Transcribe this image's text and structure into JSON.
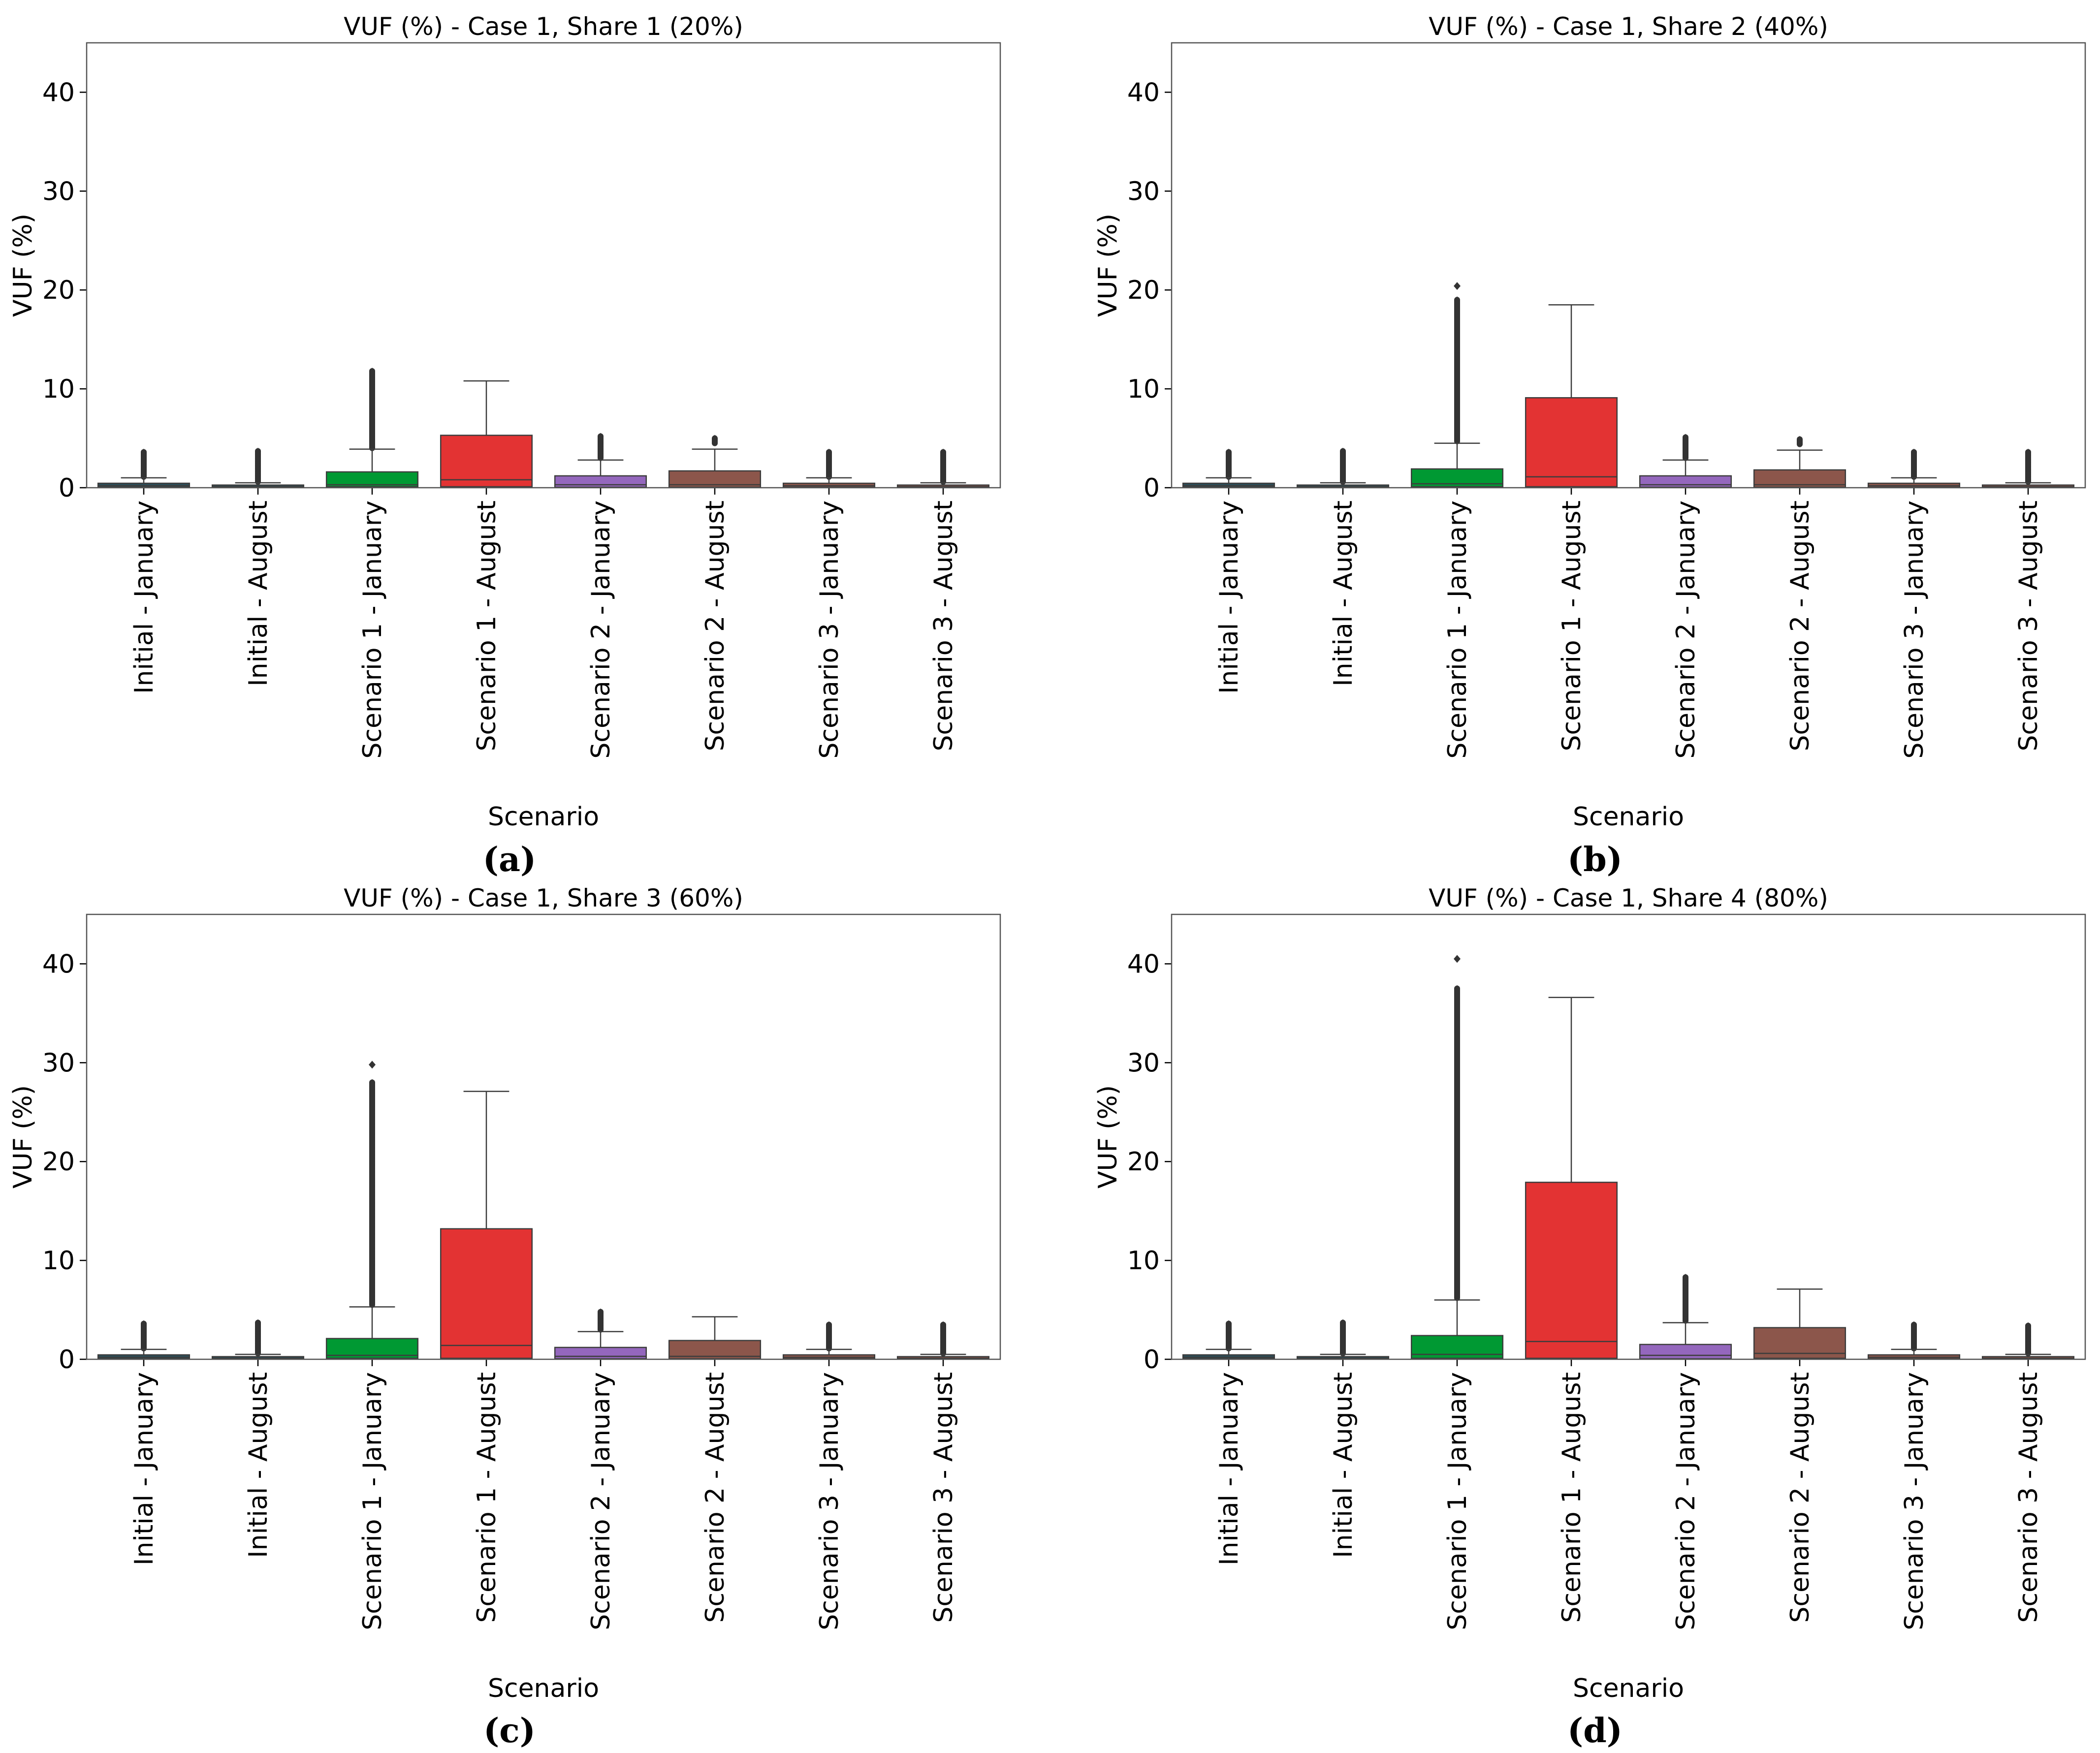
{
  "colors": {
    "initial": "#2b4f5a",
    "scenario1_january": "#009933",
    "scenario1_august": "#e33333",
    "scenario2_january": "#9467bd",
    "scenario2_august": "#8c564b",
    "scenario3": "#8c564b",
    "outline": "#3c3c3c"
  },
  "chart_data": [
    {
      "type": "box",
      "panel": "(a)",
      "title": "VUF (%) - Case 1, Share 1 (20%)",
      "xlabel": "Scenario",
      "ylabel": "VUF (%)",
      "ylim": [
        0,
        45
      ],
      "yticks": [
        0,
        10,
        20,
        30,
        40
      ],
      "categories": [
        "Initial - January",
        "Initial - August",
        "Scenario 1 - January",
        "Scenario 1 - August",
        "Scenario 2 - January",
        "Scenario 2 - August",
        "Scenario 3 - January",
        "Scenario 3 - August"
      ],
      "colors": [
        "#2b4f5a",
        "#2b4f5a",
        "#009933",
        "#e33333",
        "#9467bd",
        "#8c564b",
        "#8c564b",
        "#8c564b"
      ],
      "boxes": [
        {
          "q1": 0.05,
          "median": 0.2,
          "q3": 0.45,
          "whisker_low": 0,
          "whisker_high": 1.0,
          "outliers_min": 1.1,
          "outliers_max": 3.6
        },
        {
          "q1": 0.02,
          "median": 0.1,
          "q3": 0.25,
          "whisker_low": 0,
          "whisker_high": 0.5,
          "outliers_min": 0.6,
          "outliers_max": 3.7
        },
        {
          "q1": 0.1,
          "median": 0.3,
          "q3": 1.6,
          "whisker_low": 0,
          "whisker_high": 3.9,
          "outliers_min": 4.0,
          "outliers_max": 11.8
        },
        {
          "q1": 0.1,
          "median": 0.8,
          "q3": 5.3,
          "whisker_low": 0,
          "whisker_high": 10.8,
          "outliers_min": null,
          "outliers_max": null
        },
        {
          "q1": 0.05,
          "median": 0.3,
          "q3": 1.2,
          "whisker_low": 0,
          "whisker_high": 2.8,
          "outliers_min": 3.0,
          "outliers_max": 5.2
        },
        {
          "q1": 0.05,
          "median": 0.3,
          "q3": 1.7,
          "whisker_low": 0,
          "whisker_high": 3.9,
          "outliers_min": 4.5,
          "outliers_max": 5.0
        },
        {
          "q1": 0.05,
          "median": 0.2,
          "q3": 0.45,
          "whisker_low": 0,
          "whisker_high": 1.0,
          "outliers_min": 1.1,
          "outliers_max": 3.6
        },
        {
          "q1": 0.02,
          "median": 0.1,
          "q3": 0.25,
          "whisker_low": 0,
          "whisker_high": 0.5,
          "outliers_min": 0.6,
          "outliers_max": 3.6
        }
      ]
    },
    {
      "type": "box",
      "panel": "(b)",
      "title": "VUF (%) - Case 1, Share 2 (40%)",
      "xlabel": "Scenario",
      "ylabel": "VUF (%)",
      "ylim": [
        0,
        45
      ],
      "yticks": [
        0,
        10,
        20,
        30,
        40
      ],
      "categories": [
        "Initial - January",
        "Initial - August",
        "Scenario 1 - January",
        "Scenario 1 - August",
        "Scenario 2 - January",
        "Scenario 2 - August",
        "Scenario 3 - January",
        "Scenario 3 - August"
      ],
      "colors": [
        "#2b4f5a",
        "#2b4f5a",
        "#009933",
        "#e33333",
        "#9467bd",
        "#8c564b",
        "#8c564b",
        "#8c564b"
      ],
      "boxes": [
        {
          "q1": 0.05,
          "median": 0.2,
          "q3": 0.45,
          "whisker_low": 0,
          "whisker_high": 1.0,
          "outliers_min": 1.1,
          "outliers_max": 3.6
        },
        {
          "q1": 0.02,
          "median": 0.1,
          "q3": 0.25,
          "whisker_low": 0,
          "whisker_high": 0.5,
          "outliers_min": 0.6,
          "outliers_max": 3.7
        },
        {
          "q1": 0.1,
          "median": 0.4,
          "q3": 1.9,
          "whisker_low": 0,
          "whisker_high": 4.5,
          "outliers_min": 4.7,
          "outliers_max": 19.0,
          "outliers_extra": [
            20.4
          ]
        },
        {
          "q1": 0.1,
          "median": 1.1,
          "q3": 9.1,
          "whisker_low": 0,
          "whisker_high": 18.5,
          "outliers_min": null,
          "outliers_max": null
        },
        {
          "q1": 0.05,
          "median": 0.3,
          "q3": 1.2,
          "whisker_low": 0,
          "whisker_high": 2.8,
          "outliers_min": 3.0,
          "outliers_max": 5.1
        },
        {
          "q1": 0.05,
          "median": 0.3,
          "q3": 1.8,
          "whisker_low": 0,
          "whisker_high": 3.8,
          "outliers_min": 4.4,
          "outliers_max": 4.9
        },
        {
          "q1": 0.05,
          "median": 0.2,
          "q3": 0.45,
          "whisker_low": 0,
          "whisker_high": 1.0,
          "outliers_min": 1.1,
          "outliers_max": 3.6
        },
        {
          "q1": 0.02,
          "median": 0.1,
          "q3": 0.25,
          "whisker_low": 0,
          "whisker_high": 0.5,
          "outliers_min": 0.6,
          "outliers_max": 3.6
        }
      ]
    },
    {
      "type": "box",
      "panel": "(c)",
      "title": "VUF (%) - Case 1, Share 3 (60%)",
      "xlabel": "Scenario",
      "ylabel": "VUF (%)",
      "ylim": [
        0,
        45
      ],
      "yticks": [
        0,
        10,
        20,
        30,
        40
      ],
      "categories": [
        "Initial - January",
        "Initial - August",
        "Scenario 1 - January",
        "Scenario 1 - August",
        "Scenario 2 - January",
        "Scenario 2 - August",
        "Scenario 3 - January",
        "Scenario 3 - August"
      ],
      "colors": [
        "#2b4f5a",
        "#2b4f5a",
        "#009933",
        "#e33333",
        "#9467bd",
        "#8c564b",
        "#8c564b",
        "#8c564b"
      ],
      "boxes": [
        {
          "q1": 0.05,
          "median": 0.2,
          "q3": 0.45,
          "whisker_low": 0,
          "whisker_high": 1.0,
          "outliers_min": 1.1,
          "outliers_max": 3.6
        },
        {
          "q1": 0.02,
          "median": 0.1,
          "q3": 0.25,
          "whisker_low": 0,
          "whisker_high": 0.5,
          "outliers_min": 0.6,
          "outliers_max": 3.7
        },
        {
          "q1": 0.1,
          "median": 0.4,
          "q3": 2.1,
          "whisker_low": 0,
          "whisker_high": 5.3,
          "outliers_min": 5.5,
          "outliers_max": 28.0,
          "outliers_extra": [
            29.8
          ]
        },
        {
          "q1": 0.1,
          "median": 1.4,
          "q3": 13.2,
          "whisker_low": 0,
          "whisker_high": 27.1,
          "outliers_min": null,
          "outliers_max": null
        },
        {
          "q1": 0.05,
          "median": 0.3,
          "q3": 1.2,
          "whisker_low": 0,
          "whisker_high": 2.8,
          "outliers_min": 3.0,
          "outliers_max": 4.8
        },
        {
          "q1": 0.05,
          "median": 0.3,
          "q3": 1.9,
          "whisker_low": 0,
          "whisker_high": 4.3,
          "outliers_min": null,
          "outliers_max": null
        },
        {
          "q1": 0.05,
          "median": 0.2,
          "q3": 0.45,
          "whisker_low": 0,
          "whisker_high": 1.0,
          "outliers_min": 1.1,
          "outliers_max": 3.5
        },
        {
          "q1": 0.02,
          "median": 0.1,
          "q3": 0.25,
          "whisker_low": 0,
          "whisker_high": 0.5,
          "outliers_min": 0.6,
          "outliers_max": 3.5
        }
      ]
    },
    {
      "type": "box",
      "panel": "(d)",
      "title": "VUF (%) - Case 1, Share 4 (80%)",
      "xlabel": "Scenario",
      "ylabel": "VUF (%)",
      "ylim": [
        0,
        45
      ],
      "yticks": [
        0,
        10,
        20,
        30,
        40
      ],
      "categories": [
        "Initial - January",
        "Initial - August",
        "Scenario 1 - January",
        "Scenario 1 - August",
        "Scenario 2 - January",
        "Scenario 2 - August",
        "Scenario 3 - January",
        "Scenario 3 - August"
      ],
      "colors": [
        "#2b4f5a",
        "#2b4f5a",
        "#009933",
        "#e33333",
        "#9467bd",
        "#8c564b",
        "#8c564b",
        "#8c564b"
      ],
      "boxes": [
        {
          "q1": 0.05,
          "median": 0.2,
          "q3": 0.45,
          "whisker_low": 0,
          "whisker_high": 1.0,
          "outliers_min": 1.1,
          "outliers_max": 3.6
        },
        {
          "q1": 0.02,
          "median": 0.1,
          "q3": 0.25,
          "whisker_low": 0,
          "whisker_high": 0.5,
          "outliers_min": 0.6,
          "outliers_max": 3.7
        },
        {
          "q1": 0.1,
          "median": 0.5,
          "q3": 2.4,
          "whisker_low": 0,
          "whisker_high": 6.0,
          "outliers_min": 6.2,
          "outliers_max": 37.5,
          "outliers_extra": [
            40.5
          ]
        },
        {
          "q1": 0.1,
          "median": 1.8,
          "q3": 17.9,
          "whisker_low": 0,
          "whisker_high": 36.6,
          "outliers_min": null,
          "outliers_max": null
        },
        {
          "q1": 0.05,
          "median": 0.4,
          "q3": 1.5,
          "whisker_low": 0,
          "whisker_high": 3.7,
          "outliers_min": 3.9,
          "outliers_max": 8.3
        },
        {
          "q1": 0.1,
          "median": 0.6,
          "q3": 3.2,
          "whisker_low": 0,
          "whisker_high": 7.1,
          "outliers_min": null,
          "outliers_max": null
        },
        {
          "q1": 0.05,
          "median": 0.2,
          "q3": 0.45,
          "whisker_low": 0,
          "whisker_high": 1.0,
          "outliers_min": 1.1,
          "outliers_max": 3.5
        },
        {
          "q1": 0.02,
          "median": 0.1,
          "q3": 0.25,
          "whisker_low": 0,
          "whisker_high": 0.5,
          "outliers_min": 0.6,
          "outliers_max": 3.4
        }
      ]
    }
  ]
}
